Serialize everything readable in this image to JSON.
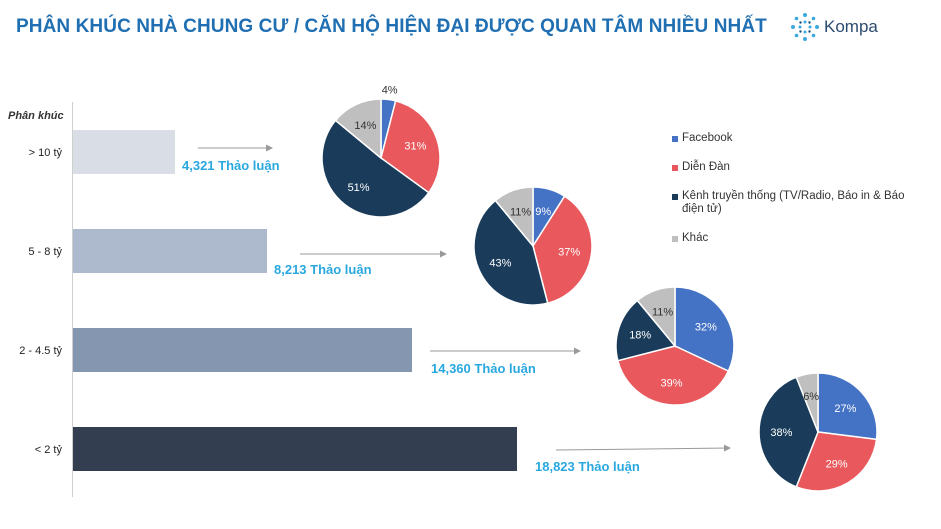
{
  "header": {
    "title": "PHÂN KHÚC NHÀ CHUNG CƯ / CĂN HỘ HIỆN ĐẠI ĐƯỢC QUAN TÂM NHIỀU NHẤT",
    "logo_text": "Kompa"
  },
  "colors": {
    "title": "#1f6fb2",
    "value_text": "#29a8e0",
    "facebook": "#4472c4",
    "dien_dan": "#e8585c",
    "truyen_thong": "#1a3c5a",
    "khac": "#bfbfbf"
  },
  "chart_data": [
    {
      "type": "bar",
      "orientation": "horizontal",
      "ylabel": "Phân khúc",
      "categories": [
        "> 10 tỷ",
        "5 - 8 tỷ",
        "2 - 4.5 tỷ",
        "< 2 tỷ"
      ],
      "values": [
        4321,
        8213,
        14360,
        18823
      ],
      "value_labels": [
        "4,321 Thảo luận",
        "8,213 Thảo luận",
        "14,360 Thảo luận",
        "18,823 Thảo luận"
      ],
      "bar_colors": [
        "#d9dde6",
        "#adb9cc",
        "#8496b0",
        "#333f50"
      ],
      "xlim": [
        0,
        20000
      ]
    },
    {
      "type": "pie",
      "segment": "> 10 tỷ",
      "labels": [
        "Facebook",
        "Diễn Đàn",
        "Kênh truyền thống (TV/Radio, Báo in & Báo điện tử)",
        "Khác"
      ],
      "values": [
        4,
        31,
        51,
        14
      ]
    },
    {
      "type": "pie",
      "segment": "5 - 8 tỷ",
      "labels": [
        "Facebook",
        "Diễn Đàn",
        "Kênh truyền thống (TV/Radio, Báo in & Báo điện tử)",
        "Khác"
      ],
      "values": [
        9,
        37,
        43,
        11
      ]
    },
    {
      "type": "pie",
      "segment": "2 - 4.5 tỷ",
      "labels": [
        "Facebook",
        "Diễn Đàn",
        "Kênh truyền thống (TV/Radio, Báo in & Báo điện tử)",
        "Khác"
      ],
      "values": [
        32,
        39,
        18,
        11
      ]
    },
    {
      "type": "pie",
      "segment": "< 2 tỷ",
      "labels": [
        "Facebook",
        "Diễn Đàn",
        "Kênh truyền thống (TV/Radio, Báo in & Báo điện tử)",
        "Khác"
      ],
      "values": [
        27,
        29,
        38,
        6
      ]
    }
  ],
  "legend": {
    "placement": "right",
    "items": [
      {
        "label": "Facebook",
        "color": "#4472c4"
      },
      {
        "label": "Diễn Đàn",
        "color": "#e8585c"
      },
      {
        "label": "Kênh truyền thống (TV/Radio, Báo in & Báo điện tử)",
        "color": "#1a3c5a"
      },
      {
        "label": "Khác",
        "color": "#bfbfbf"
      }
    ]
  }
}
